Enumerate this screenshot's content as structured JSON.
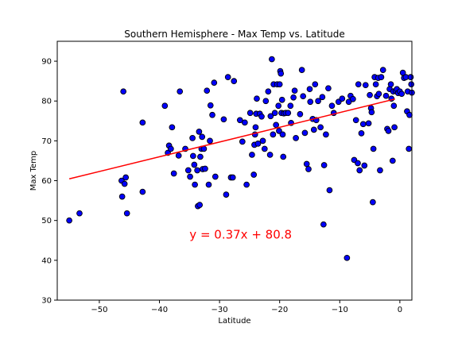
{
  "chart_data": {
    "type": "scatter",
    "title": "Southern Hemisphere - Max Temp vs. Latitude",
    "xlabel": "Latitude",
    "ylabel": "Max Temp",
    "xlim": [
      -57,
      2
    ],
    "ylim": [
      30,
      95
    ],
    "xticks": [
      -50,
      -40,
      -30,
      -20,
      -10,
      0
    ],
    "yticks": [
      30,
      40,
      50,
      60,
      70,
      80,
      90
    ],
    "grid": false,
    "point_color": "#0000ff",
    "point_edge_color": "#000000",
    "line_color": "#ff0000",
    "equation_color": "#ff0000",
    "regression": {
      "slope": 0.37,
      "intercept": 80.8,
      "x_range": [
        -55,
        -0.8
      ],
      "equation": "y = 0.37x + 80.8",
      "equation_at": [
        -35,
        45.5
      ]
    },
    "points": [
      [
        -55,
        50
      ],
      [
        -53.3,
        51.8
      ],
      [
        -46.3,
        60
      ],
      [
        -46.2,
        56
      ],
      [
        -46,
        82.4
      ],
      [
        -45.8,
        59.2
      ],
      [
        -45.6,
        60.8
      ],
      [
        -45.4,
        51.8
      ],
      [
        -42.8,
        74.6
      ],
      [
        -42.8,
        57.2
      ],
      [
        -39.1,
        78.8
      ],
      [
        -38.6,
        67
      ],
      [
        -38.4,
        68.8
      ],
      [
        -38.1,
        68
      ],
      [
        -37.9,
        73.4
      ],
      [
        -37.6,
        61.8
      ],
      [
        -36.6,
        82.4
      ],
      [
        -35.7,
        68
      ],
      [
        -35.2,
        62.6
      ],
      [
        -34.9,
        61
      ],
      [
        -34.5,
        70.7
      ],
      [
        -34.4,
        66.2
      ],
      [
        -34.2,
        64
      ],
      [
        -34.1,
        59
      ],
      [
        -33.7,
        62.6
      ],
      [
        -33.6,
        53.6
      ],
      [
        -33.4,
        72.3
      ],
      [
        -33.3,
        53.9
      ],
      [
        -33.2,
        66
      ],
      [
        -33,
        68
      ],
      [
        -32.9,
        71
      ],
      [
        -32.8,
        62.9
      ],
      [
        -32.6,
        68
      ],
      [
        -32.4,
        63
      ],
      [
        -32.1,
        82.6
      ],
      [
        -31.8,
        59
      ],
      [
        -31.6,
        70
      ],
      [
        -31.5,
        78.9
      ],
      [
        -31.2,
        76.5
      ],
      [
        -30.9,
        84.6
      ],
      [
        -30.7,
        61
      ],
      [
        -29.3,
        75.4
      ],
      [
        -28.9,
        56.5
      ],
      [
        -28.6,
        86
      ],
      [
        -28.1,
        60.8
      ],
      [
        -27.8,
        60.8
      ],
      [
        -27.6,
        85
      ],
      [
        -26.6,
        75.2
      ],
      [
        -26.2,
        69.8
      ],
      [
        -25.5,
        59
      ],
      [
        -24.9,
        77
      ],
      [
        -24.6,
        66.5
      ],
      [
        -24.3,
        61.5
      ],
      [
        -24.2,
        69
      ],
      [
        -24.1,
        71.6
      ],
      [
        -24,
        73.4
      ],
      [
        -23.9,
        76.8
      ],
      [
        -23.8,
        80.6
      ],
      [
        -23.6,
        69.3
      ],
      [
        -23.3,
        76.8
      ],
      [
        -23,
        76.1
      ],
      [
        -22.8,
        70
      ],
      [
        -22.5,
        68
      ],
      [
        -22.3,
        80
      ],
      [
        -21.9,
        82.4
      ],
      [
        -21.6,
        66.5
      ],
      [
        -21.5,
        76.2
      ],
      [
        -21.3,
        90.5
      ],
      [
        -21.1,
        71.6
      ],
      [
        -21,
        84.2
      ],
      [
        -20.8,
        77
      ],
      [
        -20.6,
        74
      ],
      [
        -20.4,
        84.2
      ],
      [
        -20.2,
        78.8
      ],
      [
        -20.1,
        72.5
      ],
      [
        -20,
        84.2
      ],
      [
        -19.9,
        87.5
      ],
      [
        -19.8,
        86.9
      ],
      [
        -19.7,
        77
      ],
      [
        -19.6,
        80.3
      ],
      [
        -19.5,
        71.6
      ],
      [
        -19.4,
        66
      ],
      [
        -19.3,
        76.9
      ],
      [
        -19,
        77
      ],
      [
        -18.6,
        77
      ],
      [
        -18.2,
        78.8
      ],
      [
        -17.7,
        80.9
      ],
      [
        -17.5,
        82.6
      ],
      [
        -17.3,
        70.7
      ],
      [
        -16.6,
        76.7
      ],
      [
        -16.3,
        87.8
      ],
      [
        -16.1,
        81.2
      ],
      [
        -15.8,
        72
      ],
      [
        -15.5,
        64.2
      ],
      [
        -15.2,
        62.9
      ],
      [
        -15,
        83
      ],
      [
        -14.5,
        75.5
      ],
      [
        -14.3,
        72.8
      ],
      [
        -14.1,
        84.2
      ],
      [
        -13.9,
        75.2
      ],
      [
        -13.6,
        80
      ],
      [
        -13.2,
        73.4
      ],
      [
        -12.9,
        81
      ],
      [
        -12.7,
        49
      ],
      [
        -12.6,
        63.9
      ],
      [
        -12.3,
        71.6
      ],
      [
        -11.9,
        83.2
      ],
      [
        -11.7,
        57.6
      ],
      [
        -11.3,
        78.8
      ],
      [
        -11,
        77
      ],
      [
        -10.2,
        79.8
      ],
      [
        -9.6,
        80.6
      ],
      [
        -8.8,
        40.6
      ],
      [
        -8.5,
        79.8
      ],
      [
        -8.2,
        81.3
      ],
      [
        -7.8,
        80.5
      ],
      [
        -7.6,
        65.2
      ],
      [
        -7.3,
        75.2
      ],
      [
        -7,
        64.4
      ],
      [
        -6.7,
        62.6
      ],
      [
        -6.4,
        71.9
      ],
      [
        -6.1,
        74.2
      ],
      [
        -5.7,
        84
      ],
      [
        -5.2,
        74.4
      ],
      [
        -5,
        81.5
      ],
      [
        -4.8,
        78.2
      ],
      [
        -4.7,
        77.2
      ],
      [
        -4.5,
        54.6
      ],
      [
        -4.4,
        68
      ],
      [
        -4.2,
        86
      ],
      [
        -4,
        84.2
      ],
      [
        -3.8,
        81.2
      ],
      [
        -3.6,
        85.8
      ],
      [
        -3.5,
        81.8
      ],
      [
        -3.3,
        62.6
      ],
      [
        -3.1,
        86
      ],
      [
        -2.8,
        87.8
      ],
      [
        -2.3,
        81.3
      ],
      [
        -2.1,
        73
      ],
      [
        -1.9,
        72.5
      ],
      [
        -1.7,
        83
      ],
      [
        -1.5,
        84.2
      ],
      [
        -1.4,
        80.6
      ],
      [
        -1.2,
        65
      ],
      [
        -1.1,
        82.4
      ],
      [
        -1,
        78.8
      ],
      [
        -0.9,
        73.4
      ],
      [
        -0.7,
        82.6
      ],
      [
        -0.5,
        83
      ],
      [
        -0.3,
        82
      ],
      [
        0,
        82.4
      ],
      [
        0.3,
        81.8
      ],
      [
        0.5,
        87.1
      ],
      [
        0.7,
        85.8
      ],
      [
        1,
        86
      ],
      [
        1.2,
        77.4
      ],
      [
        1.3,
        82.4
      ],
      [
        1.5,
        68
      ],
      [
        1.6,
        76.5
      ],
      [
        1.8,
        86
      ],
      [
        1.9,
        84.2
      ],
      [
        2,
        82.1
      ],
      [
        -6.9,
        84.2
      ],
      [
        -5.9,
        63.8
      ],
      [
        -18.1,
        74.5
      ],
      [
        -14.9,
        79.8
      ],
      [
        -25.8,
        74.6
      ],
      [
        -36.8,
        66.3
      ]
    ]
  }
}
